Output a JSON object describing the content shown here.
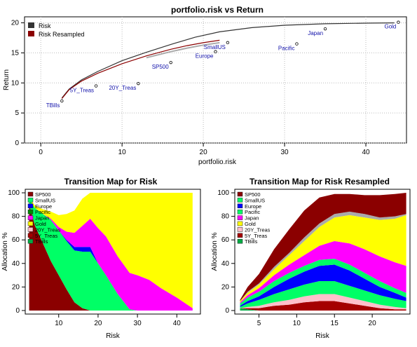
{
  "chart_data": [
    {
      "type": "line",
      "title": "portfolio.risk vs Return",
      "xlabel": "portfolio.risk",
      "ylabel": "Return",
      "xlim": [
        -2,
        45
      ],
      "ylim": [
        0,
        21
      ],
      "xticks": [
        "0",
        "10",
        "20",
        "30",
        "40"
      ],
      "yticks": [
        "0",
        "5",
        "10",
        "15",
        "20"
      ],
      "grid": true,
      "legend": "top-left",
      "series": [
        {
          "name": "Risk",
          "color": "#333333",
          "x": [
            2.6,
            3.5,
            5,
            7,
            10,
            13,
            16,
            19,
            22,
            26,
            30,
            35,
            40,
            43.5
          ],
          "y": [
            7.5,
            9.0,
            10.5,
            11.9,
            13.7,
            15.1,
            16.4,
            17.6,
            18.5,
            19.2,
            19.6,
            19.85,
            19.95,
            20.0
          ]
        },
        {
          "name": "Risk Resampled",
          "color": "#8b0000",
          "x": [
            2.6,
            3.5,
            5,
            7,
            10,
            13,
            16,
            18,
            20,
            22
          ],
          "y": [
            7.4,
            8.9,
            10.3,
            11.6,
            13.2,
            14.5,
            15.6,
            16.2,
            16.7,
            17.1
          ]
        },
        {
          "name": "",
          "color": "#aaaaaa",
          "x": [
            13,
            16,
            18,
            20,
            22
          ],
          "y": [
            14.2,
            15.2,
            15.8,
            16.3,
            16.7
          ]
        }
      ],
      "points": [
        {
          "label": "TBills",
          "x": 2.6,
          "y": 7.0
        },
        {
          "label": "5Y_Treas",
          "x": 6.8,
          "y": 9.5
        },
        {
          "label": "20Y_Treas",
          "x": 12.0,
          "y": 9.9
        },
        {
          "label": "SP500",
          "x": 16.0,
          "y": 13.4
        },
        {
          "label": "Europe",
          "x": 21.5,
          "y": 15.2
        },
        {
          "label": "SmallUS",
          "x": 23.0,
          "y": 16.7
        },
        {
          "label": "Pacific",
          "x": 31.5,
          "y": 16.5
        },
        {
          "label": "Japan",
          "x": 35.0,
          "y": 19.0
        },
        {
          "label": "Gold",
          "x": 44.0,
          "y": 20.1
        }
      ]
    },
    {
      "type": "area",
      "title": "Transition Map for Risk",
      "xlabel": "Risk",
      "ylabel": "Allocation %",
      "xlim": [
        1.5,
        46
      ],
      "ylim": [
        -3,
        103
      ],
      "xticks": [
        "10",
        "20",
        "30",
        "40"
      ],
      "yticks": [
        "0",
        "20",
        "40",
        "60",
        "80",
        "100"
      ],
      "legend": "top-left",
      "x": [
        2.5,
        4,
        6,
        8,
        10,
        12,
        14,
        16,
        18,
        20,
        22,
        25,
        28,
        30,
        33,
        36,
        40,
        44
      ],
      "series": [
        {
          "name": "SP500",
          "color": "#8b0000",
          "values": [
            90,
            72,
            57,
            42,
            30,
            18,
            7,
            2,
            0,
            0,
            0,
            0,
            0,
            0,
            0,
            0,
            0,
            0
          ]
        },
        {
          "name": "SmallUS",
          "color": "#00ff66",
          "values": [
            5,
            15,
            25,
            35,
            38,
            41,
            44,
            48,
            50,
            40,
            30,
            14,
            1,
            0,
            0,
            0,
            0,
            0
          ]
        },
        {
          "name": "Europe",
          "color": "#0000ff",
          "values": [
            0,
            0,
            0,
            0,
            0,
            1,
            3,
            4,
            4,
            0,
            0,
            0,
            0,
            0,
            0,
            0,
            0,
            0
          ]
        },
        {
          "name": "Pacific",
          "color": "#008800",
          "values": [
            0,
            0,
            0,
            0,
            0,
            0,
            0,
            0,
            0,
            0,
            0,
            0,
            0,
            0,
            0,
            0,
            0,
            0
          ]
        },
        {
          "name": "Japan",
          "color": "#ff00ff",
          "values": [
            0,
            0,
            0,
            1,
            3,
            7,
            12,
            18,
            24,
            30,
            33,
            32,
            31,
            30,
            26,
            19,
            11,
            2
          ]
        },
        {
          "name": "Gold",
          "color": "#ffff00",
          "values": [
            1,
            2,
            4,
            6,
            10,
            15,
            19,
            23,
            22,
            30,
            37,
            54,
            68,
            70,
            74,
            81,
            89,
            98
          ]
        },
        {
          "name": "20Y_Treas",
          "color": "#ffc0cb",
          "values": [
            0,
            0,
            0,
            0,
            0,
            0,
            0,
            0,
            0,
            0,
            0,
            0,
            0,
            0,
            0,
            0,
            0,
            0
          ]
        },
        {
          "name": "5Y_Treas",
          "color": "#a50000",
          "values": [
            0,
            0,
            0,
            0,
            0,
            0,
            0,
            0,
            0,
            0,
            0,
            0,
            0,
            0,
            0,
            0,
            0,
            0
          ]
        },
        {
          "name": "TBills",
          "color": "#00aa44",
          "values": [
            0,
            0,
            0,
            0,
            0,
            0,
            0,
            0,
            0,
            0,
            0,
            0,
            0,
            0,
            0,
            0,
            0,
            0
          ]
        }
      ]
    },
    {
      "type": "area",
      "title": "Transition Map for Risk Resampled",
      "xlabel": "Risk",
      "ylabel": "Allocation %",
      "xlim": [
        1.8,
        25
      ],
      "ylim": [
        -3,
        103
      ],
      "xticks": [
        "5",
        "10",
        "15",
        "20"
      ],
      "yticks": [
        "0",
        "20",
        "40",
        "60",
        "80",
        "100"
      ],
      "legend": "top-left",
      "x": [
        2.5,
        3.5,
        5,
        7,
        9,
        11,
        13,
        15,
        17,
        19,
        21,
        23,
        24.5
      ],
      "series": [
        {
          "name": "TBills",
          "color": "#00aa44",
          "values": [
            2,
            1,
            0,
            0,
            0,
            0,
            0,
            0,
            0,
            0,
            0,
            0,
            0
          ]
        },
        {
          "name": "5Y_Treas",
          "color": "#a50000",
          "values": [
            0,
            1,
            2,
            4,
            5,
            7,
            8,
            8,
            6,
            4,
            2,
            1,
            1
          ]
        },
        {
          "name": "20Y_Treas",
          "color": "#ffc0cb",
          "values": [
            0,
            1,
            2,
            3,
            4,
            5,
            6,
            6,
            5,
            4,
            3,
            2,
            1
          ]
        },
        {
          "name": "SmallUS",
          "color": "#00ff66",
          "values": [
            1,
            3,
            5,
            7,
            9,
            10,
            11,
            11,
            10,
            9,
            8,
            7,
            6
          ]
        },
        {
          "name": "Europe",
          "color": "#0000ff",
          "values": [
            1,
            2,
            3,
            6,
            9,
            11,
            13,
            14,
            13,
            10,
            7,
            5,
            3
          ]
        },
        {
          "name": "Pacific",
          "color": "#00ff66",
          "values": [
            2,
            3,
            4,
            5,
            5,
            5,
            5,
            5,
            5,
            5,
            5,
            4,
            4
          ]
        },
        {
          "name": "Japan",
          "color": "#ff00ff",
          "values": [
            1,
            2,
            3,
            5,
            7,
            9,
            12,
            15,
            18,
            20,
            21,
            22,
            23
          ]
        },
        {
          "name": "Gold",
          "color": "#ffff00",
          "values": [
            1,
            2,
            3,
            5,
            8,
            12,
            16,
            20,
            24,
            27,
            31,
            37,
            43
          ]
        },
        {
          "name": "",
          "color": "#aaaaaa",
          "values": [
            0,
            1,
            1,
            2,
            2,
            3,
            3,
            3,
            3,
            3,
            2,
            2,
            1
          ]
        },
        {
          "name": "SP500",
          "color": "#8b0000",
          "values": [
            1,
            4,
            8,
            15,
            20,
            23,
            22,
            17,
            15,
            16,
            19,
            19,
            18
          ]
        }
      ]
    }
  ]
}
